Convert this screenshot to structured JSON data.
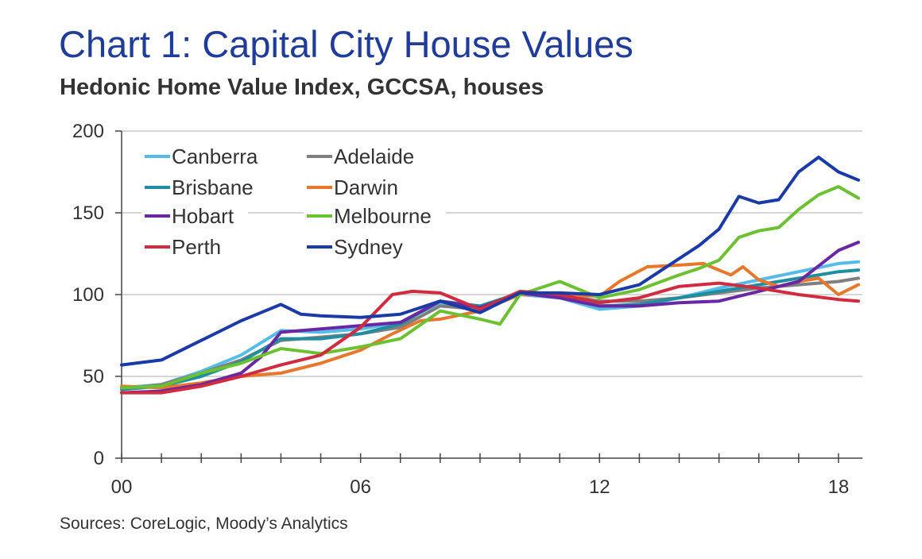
{
  "header": {
    "title": "Chart 1: Capital City House Values",
    "subtitle": "Hedonic Home Value Index, GCCSA, houses"
  },
  "footer": {
    "source": "Sources: CoreLogic, Moody’s Analytics"
  },
  "chart_data": {
    "type": "line",
    "title": "Chart 1: Capital City House Values",
    "subtitle": "Hedonic Home Value Index, GCCSA, houses",
    "xlabel": "",
    "ylabel": "",
    "xlim": [
      2000.0,
      2018.6
    ],
    "ylim": [
      0,
      200
    ],
    "yticks": [
      0,
      50,
      100,
      150,
      200
    ],
    "xticks": [
      {
        "value": 2000,
        "label": "00"
      },
      {
        "value": 2006,
        "label": "06"
      },
      {
        "value": 2012,
        "label": "12"
      },
      {
        "value": 2018,
        "label": "18"
      }
    ],
    "grid": "horizontal",
    "legend": "top-left",
    "series": [
      {
        "name": "Canberra",
        "color": "#55bbe8",
        "x": [
          2000,
          2001,
          2002,
          2003,
          2004,
          2005,
          2006,
          2007,
          2008,
          2009,
          2010,
          2011,
          2012,
          2013,
          2014,
          2015,
          2016,
          2017,
          2018,
          2018.5
        ],
        "y": [
          43,
          45,
          53,
          63,
          78,
          77,
          79,
          83,
          95,
          92,
          100,
          98,
          91,
          93,
          98,
          104,
          109,
          114,
          119,
          120
        ]
      },
      {
        "name": "Adelaide",
        "color": "#7f7f7f",
        "x": [
          2000,
          2001,
          2002,
          2003,
          2004,
          2005,
          2006,
          2007,
          2008,
          2009,
          2010,
          2011,
          2012,
          2013,
          2014,
          2015,
          2016,
          2017,
          2018,
          2018.5
        ],
        "y": [
          42,
          45,
          52,
          60,
          72,
          74,
          76,
          80,
          93,
          91,
          100,
          100,
          96,
          96,
          98,
          101,
          104,
          106,
          108,
          110
        ]
      },
      {
        "name": "Brisbane",
        "color": "#1f8ea0",
        "x": [
          2000,
          2001,
          2002,
          2003,
          2004,
          2005,
          2006,
          2007,
          2008,
          2009,
          2010,
          2011,
          2012,
          2013,
          2014,
          2015,
          2016,
          2017,
          2018,
          2018.5
        ],
        "y": [
          42,
          44,
          50,
          59,
          73,
          73,
          76,
          82,
          96,
          93,
          101,
          98,
          93,
          94,
          98,
          102,
          106,
          110,
          114,
          115
        ]
      },
      {
        "name": "Darwin",
        "color": "#e8762b",
        "x": [
          2000,
          2001,
          2002,
          2003,
          2004,
          2005,
          2006,
          2006.8,
          2007.5,
          2008,
          2009,
          2010,
          2011,
          2012,
          2012.5,
          2013.2,
          2014,
          2014.6,
          2015.3,
          2015.6,
          2016,
          2016.5,
          2017,
          2017.5,
          2018,
          2018.5
        ],
        "y": [
          44,
          43,
          46,
          50,
          52,
          58,
          66,
          76,
          84,
          85,
          90,
          100,
          100,
          99,
          108,
          117,
          118,
          119,
          112,
          117,
          109,
          105,
          108,
          110,
          100,
          106
        ]
      },
      {
        "name": "Hobart",
        "color": "#6a27a3",
        "x": [
          2000,
          2001,
          2002,
          2003,
          2003.5,
          2004,
          2005,
          2006,
          2007,
          2008,
          2009,
          2010,
          2011,
          2012,
          2013,
          2014,
          2015,
          2016,
          2017,
          2018,
          2018.5
        ],
        "y": [
          40,
          41,
          45,
          52,
          62,
          77,
          79,
          81,
          83,
          96,
          92,
          101,
          98,
          93,
          93,
          95,
          96,
          102,
          108,
          127,
          132
        ]
      },
      {
        "name": "Melbourne",
        "color": "#6cc133",
        "x": [
          2000,
          2001,
          2002,
          2003,
          2004,
          2005,
          2006,
          2007,
          2008,
          2009,
          2009.5,
          2010,
          2011,
          2012,
          2013,
          2014,
          2014.5,
          2015,
          2015.5,
          2016,
          2016.5,
          2017,
          2017.5,
          2018,
          2018.5
        ],
        "y": [
          43,
          44,
          52,
          58,
          67,
          64,
          68,
          73,
          90,
          85,
          82,
          100,
          108,
          98,
          103,
          112,
          116,
          121,
          135,
          139,
          141,
          152,
          161,
          166,
          159
        ]
      },
      {
        "name": "Perth",
        "color": "#d12b3f",
        "x": [
          2000,
          2001,
          2002,
          2003,
          2004,
          2005,
          2006,
          2006.8,
          2007.3,
          2008,
          2009,
          2010,
          2011,
          2012,
          2013,
          2014,
          2015,
          2016,
          2017,
          2018,
          2018.5
        ],
        "y": [
          40,
          40,
          44,
          50,
          57,
          63,
          80,
          100,
          102,
          101,
          91,
          102,
          100,
          95,
          98,
          105,
          107,
          104,
          100,
          97,
          96
        ]
      },
      {
        "name": "Sydney",
        "color": "#1a3aa8",
        "x": [
          2000,
          2001,
          2002,
          2003,
          2003.5,
          2004,
          2004.5,
          2005,
          2006,
          2007,
          2008,
          2009,
          2010,
          2011,
          2012,
          2013,
          2014,
          2014.5,
          2015,
          2015.5,
          2016,
          2016.5,
          2017,
          2017.5,
          2018,
          2018.5
        ],
        "y": [
          57,
          60,
          72,
          84,
          89,
          94,
          88,
          87,
          86,
          88,
          96,
          89,
          101,
          101,
          100,
          106,
          122,
          130,
          140,
          160,
          156,
          158,
          175,
          184,
          175,
          170
        ]
      }
    ]
  }
}
